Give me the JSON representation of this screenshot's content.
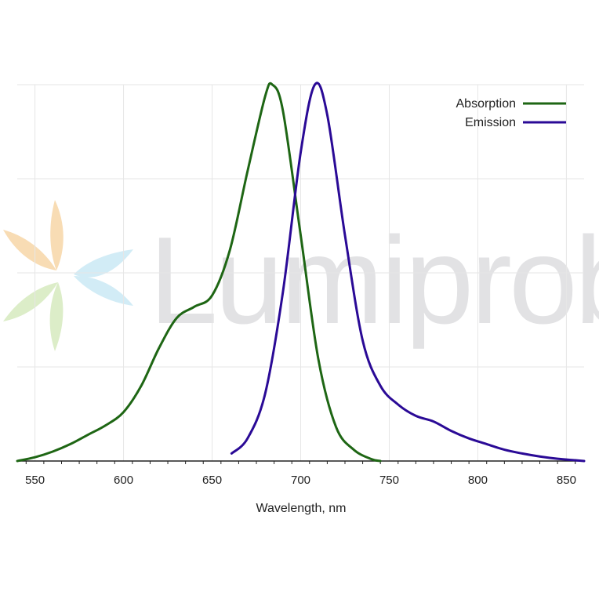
{
  "chart_data": {
    "type": "line",
    "title": "",
    "xlabel": "Wavelength, nm",
    "ylabel": "",
    "xlim": [
      540,
      860
    ],
    "ylim": [
      0,
      1
    ],
    "x_ticks": [
      550,
      600,
      650,
      700,
      750,
      800,
      850
    ],
    "x_tick_labels": [
      "550",
      "600",
      "650",
      "700",
      "750",
      "800",
      "850"
    ],
    "y_gridlines": [
      0.25,
      0.5,
      0.75,
      1.0
    ],
    "grid": true,
    "legend_position": "top-right",
    "series": [
      {
        "name": "Absorption",
        "color": "#1e6614",
        "points": [
          [
            540,
            0.0
          ],
          [
            550,
            0.01
          ],
          [
            560,
            0.025
          ],
          [
            570,
            0.045
          ],
          [
            580,
            0.07
          ],
          [
            590,
            0.095
          ],
          [
            600,
            0.13
          ],
          [
            610,
            0.2
          ],
          [
            620,
            0.3
          ],
          [
            630,
            0.38
          ],
          [
            640,
            0.41
          ],
          [
            650,
            0.44
          ],
          [
            660,
            0.56
          ],
          [
            670,
            0.77
          ],
          [
            680,
            0.97
          ],
          [
            684,
            1.0
          ],
          [
            690,
            0.93
          ],
          [
            700,
            0.6
          ],
          [
            710,
            0.27
          ],
          [
            720,
            0.09
          ],
          [
            730,
            0.03
          ],
          [
            740,
            0.005
          ],
          [
            745,
            0.0
          ]
        ]
      },
      {
        "name": "Emission",
        "color": "#2a0a96",
        "points": [
          [
            661,
            0.02
          ],
          [
            670,
            0.06
          ],
          [
            680,
            0.18
          ],
          [
            690,
            0.45
          ],
          [
            700,
            0.82
          ],
          [
            708,
            1.0
          ],
          [
            715,
            0.92
          ],
          [
            725,
            0.6
          ],
          [
            735,
            0.32
          ],
          [
            745,
            0.2
          ],
          [
            755,
            0.15
          ],
          [
            765,
            0.12
          ],
          [
            775,
            0.105
          ],
          [
            785,
            0.08
          ],
          [
            795,
            0.06
          ],
          [
            805,
            0.045
          ],
          [
            815,
            0.03
          ],
          [
            825,
            0.02
          ],
          [
            835,
            0.012
          ],
          [
            845,
            0.006
          ],
          [
            855,
            0.002
          ],
          [
            860,
            0.0
          ]
        ]
      }
    ]
  },
  "watermark": {
    "text": "Lumiprobe",
    "logo_icon": "lumiprobe-star-icon",
    "colors": [
      "#f8dcb4",
      "#d2ecf6",
      "#dcedc8",
      "#e2e2e4"
    ]
  }
}
